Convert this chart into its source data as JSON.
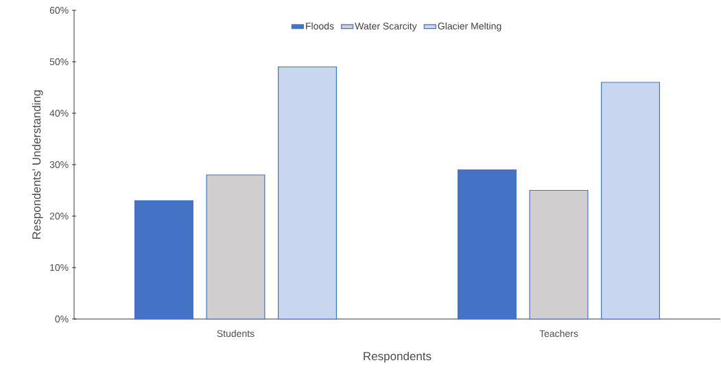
{
  "chart_data": {
    "type": "bar",
    "xlabel": "Respondents",
    "ylabel": "Respondents' Understanding",
    "categories": [
      "Students",
      "Teachers"
    ],
    "series": [
      {
        "name": "Floods",
        "color": "#4472c4",
        "values": [
          23,
          29
        ]
      },
      {
        "name": "Water Scarcity",
        "color": "#d0cece",
        "values": [
          28,
          25
        ]
      },
      {
        "name": "Glacier Melting",
        "color": "#c9d6ef",
        "values": [
          49,
          46
        ]
      }
    ],
    "ylim": [
      0,
      60
    ],
    "yticks": [
      {
        "value": 0,
        "label": "0%"
      },
      {
        "value": 10,
        "label": "10%"
      },
      {
        "value": 20,
        "label": "20%"
      },
      {
        "value": 30,
        "label": "30%"
      },
      {
        "value": 40,
        "label": "40%"
      },
      {
        "value": 50,
        "label": "50%"
      },
      {
        "value": 60,
        "label": "60%"
      }
    ],
    "legend": "top",
    "grid": false
  }
}
